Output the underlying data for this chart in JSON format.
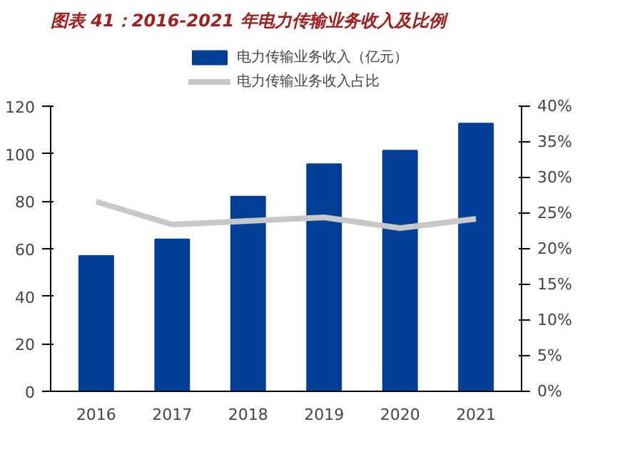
{
  "chart_data": {
    "type": "bar",
    "title": "图表 41：2016-2021 年电力传输业务收入及比例",
    "categories": [
      "2016",
      "2017",
      "2018",
      "2019",
      "2020",
      "2021"
    ],
    "series": [
      {
        "name": "电力传输业务收入（亿元）",
        "color": "#003f98",
        "values": [
          57,
          64,
          82,
          95.6,
          101.3,
          112.7
        ]
      },
      {
        "name": "电力传输业务收入占比",
        "type": "line",
        "axis": "y2",
        "color": "#c8c8c8",
        "values": [
          26.6,
          23.4,
          23.9,
          24.4,
          22.9,
          24.2
        ]
      }
    ],
    "ylim": [
      0,
      120
    ],
    "yticks": [
      0,
      20,
      40,
      60,
      80,
      100,
      120
    ],
    "y2lim": [
      0,
      40
    ],
    "y2ticks": [
      {
        "value": 0,
        "label": "0%"
      },
      {
        "value": 5,
        "label": "5%"
      },
      {
        "value": 10,
        "label": "10%"
      },
      {
        "value": 15,
        "label": "15%"
      },
      {
        "value": 20,
        "label": "20%"
      },
      {
        "value": 25,
        "label": "25%"
      },
      {
        "value": 30,
        "label": "30%"
      },
      {
        "value": 35,
        "label": "35%"
      },
      {
        "value": 40,
        "label": "40%"
      }
    ],
    "legend": "top",
    "grid": false
  }
}
